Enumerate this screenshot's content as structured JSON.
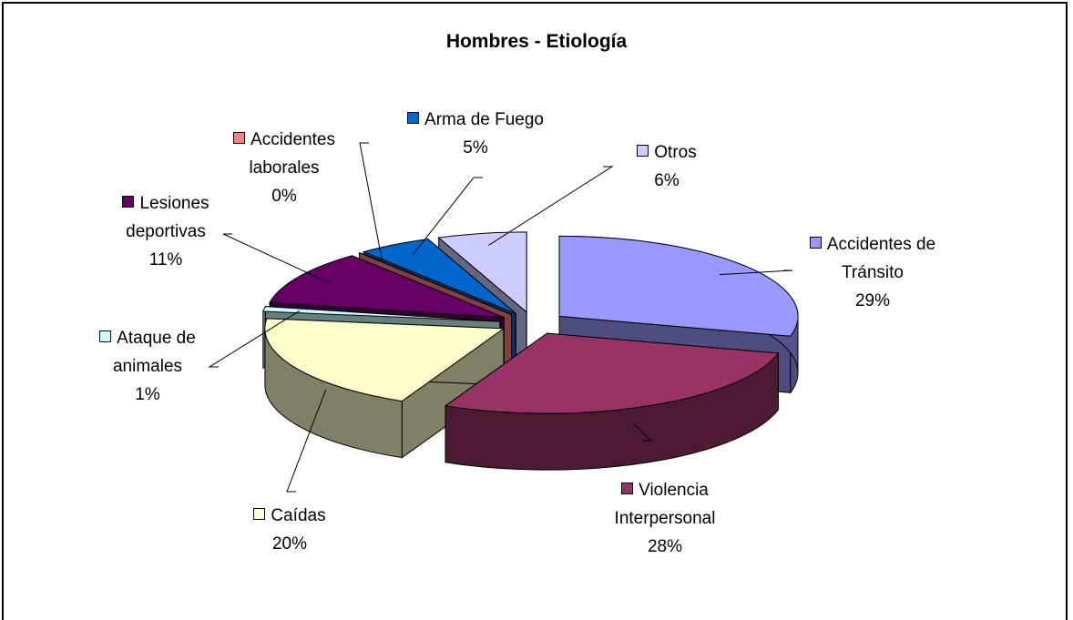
{
  "chart_data": {
    "type": "pie3d",
    "title": "Hombres - Etiología",
    "categories": [
      "Accidentes de Tránsito",
      "Violencia Interpersonal",
      "Caídas",
      "Ataque de animales",
      "Lesiones deportivas",
      "Accidentes laborales",
      "Arma de Fuego",
      "Otros"
    ],
    "values": [
      29,
      28,
      20,
      1,
      11,
      0,
      5,
      6
    ],
    "value_labels": [
      "29%",
      "28%",
      "20%",
      "1%",
      "11%",
      "0%",
      "5%",
      "6%"
    ],
    "colors": [
      "#9999ff",
      "#993366",
      "#ffffcc",
      "#ccffff",
      "#660066",
      "#ff8080",
      "#0066cc",
      "#ccccff"
    ]
  }
}
